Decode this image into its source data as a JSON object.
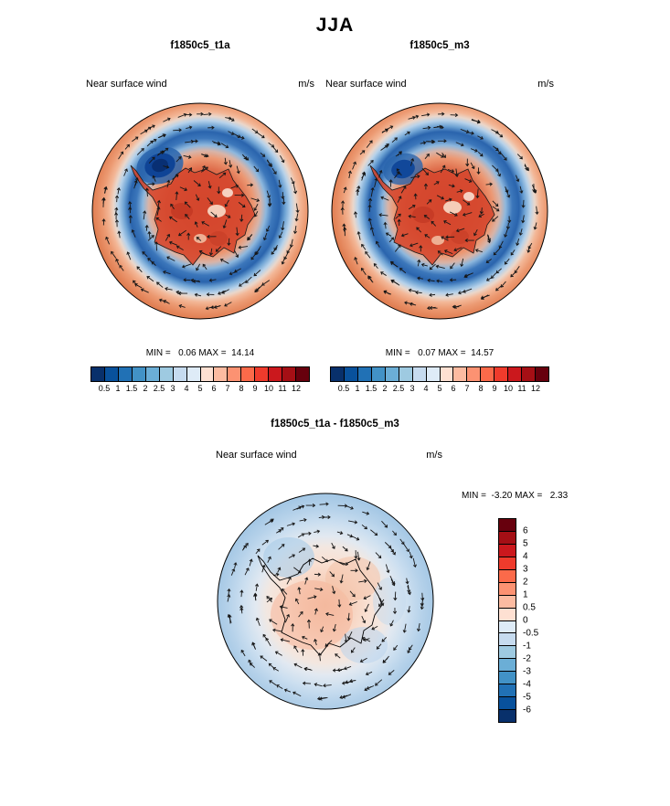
{
  "title": "JJA",
  "panels": [
    {
      "title": "f1850c5_t1a",
      "field_label": "Near surface wind",
      "units": "m/s",
      "stats": "MIN =   0.06 MAX =  14.14"
    },
    {
      "title": "f1850c5_m3",
      "field_label": "Near surface wind",
      "units": "m/s",
      "stats": "MIN =   0.07 MAX =  14.57"
    },
    {
      "title": "f1850c5_t1a - f1850c5_m3",
      "field_label": "Near surface wind",
      "units": "m/s",
      "stats": "MIN =  -3.20 MAX =   2.33"
    }
  ],
  "chart_data": [
    {
      "type": "heatmap",
      "projection": "south-polar-stereographic",
      "overlay": "wind-vector-arrows",
      "season": "JJA",
      "title": "f1850c5_t1a",
      "variable": "Near surface wind",
      "units": "m/s",
      "min": 0.06,
      "max": 14.14,
      "levels": [
        "0.5",
        "1",
        "1.5",
        "2",
        "2.5",
        "3",
        "4",
        "5",
        "6",
        "7",
        "8",
        "9",
        "10",
        "11",
        "12"
      ],
      "colors": [
        "#08306b",
        "#08519c",
        "#2171b5",
        "#4292c6",
        "#6baed6",
        "#9ecae1",
        "#c6dbef",
        "#deebf7",
        "#fee0d2",
        "#fcbba1",
        "#fc9272",
        "#fb6a4a",
        "#ef3b2c",
        "#cb181d",
        "#a50f15",
        "#67000d"
      ],
      "colorbar_orientation": "horizontal",
      "colorbar_position": "bottom"
    },
    {
      "type": "heatmap",
      "projection": "south-polar-stereographic",
      "overlay": "wind-vector-arrows",
      "season": "JJA",
      "title": "f1850c5_m3",
      "variable": "Near surface wind",
      "units": "m/s",
      "min": 0.07,
      "max": 14.57,
      "levels": [
        "0.5",
        "1",
        "1.5",
        "2",
        "2.5",
        "3",
        "4",
        "5",
        "6",
        "7",
        "8",
        "9",
        "10",
        "11",
        "12"
      ],
      "colors": [
        "#08306b",
        "#08519c",
        "#2171b5",
        "#4292c6",
        "#6baed6",
        "#9ecae1",
        "#c6dbef",
        "#deebf7",
        "#fee0d2",
        "#fcbba1",
        "#fc9272",
        "#fb6a4a",
        "#ef3b2c",
        "#cb181d",
        "#a50f15",
        "#67000d"
      ],
      "colorbar_orientation": "horizontal",
      "colorbar_position": "bottom"
    },
    {
      "type": "heatmap",
      "projection": "south-polar-stereographic",
      "overlay": "wind-vector-arrows",
      "season": "JJA",
      "title": "f1850c5_t1a - f1850c5_m3",
      "variable": "Near surface wind",
      "units": "m/s",
      "min": -3.2,
      "max": 2.33,
      "levels": [
        "6",
        "5",
        "4",
        "3",
        "2",
        "1",
        "0.5",
        "0",
        "-0.5",
        "-1",
        "-2",
        "-3",
        "-4",
        "-5",
        "-6"
      ],
      "colors": [
        "#67000d",
        "#a50f15",
        "#cb181d",
        "#ef3b2c",
        "#fb6a4a",
        "#fc9272",
        "#fcbba1",
        "#fee0d2",
        "#deebf7",
        "#c6dbef",
        "#9ecae1",
        "#6baed6",
        "#4292c6",
        "#2171b5",
        "#08519c",
        "#08306b"
      ],
      "colorbar_orientation": "vertical",
      "colorbar_position": "right"
    }
  ]
}
